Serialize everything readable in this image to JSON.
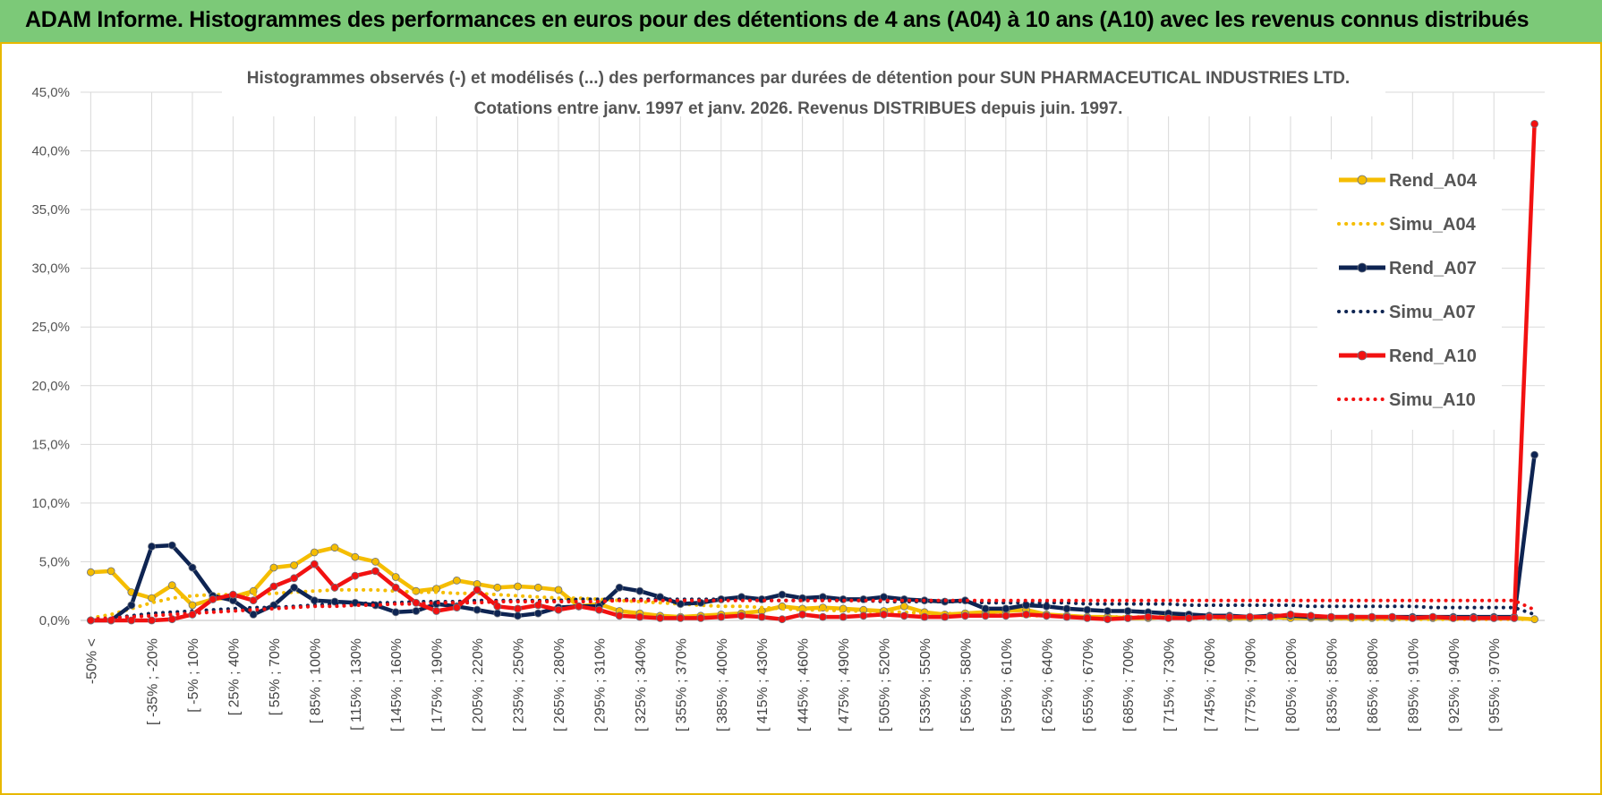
{
  "banner": {
    "title": "ADAM Informe. Histogrammes des performances en euros pour des détentions de 4 ans (A04) à 10 ans (A10) avec les revenus connus distribués"
  },
  "colors": {
    "banner_bg": "#7cc978",
    "frame_border": "#e8b800",
    "A04": "#f5bd00",
    "A07": "#0e2452",
    "A10": "#f21111"
  },
  "chart_data": {
    "type": "line",
    "title": "Histogrammes observés (-) et modélisés (...) des performances par durées de détention pour SUN PHARMACEUTICAL INDUSTRIES LTD.",
    "subtitle": "Cotations entre janv. 1997 et janv. 2026. Revenus DISTRIBUES depuis juin. 1997.",
    "xlabel": "",
    "ylabel": "",
    "ylim": [
      0,
      45
    ],
    "yticks": [
      "0,0%",
      "5,0%",
      "10,0%",
      "15,0%",
      "20,0%",
      "25,0%",
      "30,0%",
      "35,0%",
      "40,0%",
      "45,0%"
    ],
    "grid": true,
    "legend_position": "top-right",
    "categories_labeled": [
      "-50% <",
      "[ -35% ; -20%",
      "[ -5% ; 10%",
      "[ 25% ; 40%",
      "[ 55% ; 70%",
      "[ 85% ; 100%",
      "[ 115% ; 130%",
      "[ 145% ; 160%",
      "[ 175% ; 190%",
      "[ 205% ; 220%",
      "[ 235% ; 250%",
      "[ 265% ; 280%",
      "[ 295% ; 310%",
      "[ 325% ; 340%",
      "[ 355% ; 370%",
      "[ 385% ; 400%",
      "[ 415% ; 430%",
      "[ 445% ; 460%",
      "[ 475% ; 490%",
      "[ 505% ; 520%",
      "[ 535% ; 550%",
      "[ 565% ; 580%",
      "[ 595% ; 610%",
      "[ 625% ; 640%",
      "[ 655% ; 670%",
      "[ 685% ; 700%",
      "[ 715% ; 730%",
      "[ 745% ; 760%",
      "[ 775% ; 790%",
      "[ 805% ; 820%",
      "[ 835% ; 850%",
      "[ 865% ; 880%",
      "[ 895% ; 910%",
      "[ 925% ; 940%",
      "[ 955% ; 970%"
    ],
    "label_indices": [
      0,
      3,
      5,
      7,
      9,
      11,
      13,
      15,
      17,
      19,
      21,
      23,
      25,
      27,
      29,
      31,
      33,
      35,
      37,
      39,
      41,
      43,
      45,
      47,
      49,
      51,
      53,
      55,
      57,
      59,
      61,
      63,
      65,
      67,
      69
    ],
    "n_points": 72,
    "series": [
      {
        "name": "Rend_A04",
        "style": "solid",
        "color": "#f5bd00",
        "values": [
          4.1,
          4.2,
          2.4,
          1.9,
          3.0,
          1.3,
          1.8,
          2.0,
          2.5,
          4.5,
          4.7,
          5.8,
          6.2,
          5.4,
          5.0,
          3.7,
          2.5,
          2.7,
          3.4,
          3.1,
          2.8,
          2.9,
          2.8,
          2.6,
          1.2,
          1.4,
          0.8,
          0.6,
          0.4,
          0.3,
          0.4,
          0.5,
          0.6,
          0.8,
          1.2,
          1.0,
          1.1,
          1.0,
          0.9,
          0.8,
          1.2,
          0.7,
          0.5,
          0.6,
          0.7,
          0.8,
          0.9,
          0.5,
          0.4,
          0.3,
          0.3,
          0.2,
          0.2,
          0.3,
          0.2,
          0.3,
          0.2,
          0.2,
          0.3,
          0.2,
          0.2,
          0.2,
          0.2,
          0.2,
          0.2,
          0.2,
          0.2,
          0.2,
          0.2,
          0.2,
          0.2,
          0.1
        ]
      },
      {
        "name": "Simu_A04",
        "style": "dotted",
        "color": "#f5bd00",
        "values": [
          0.2,
          0.5,
          1.0,
          1.5,
          1.9,
          2.1,
          2.2,
          2.2,
          2.2,
          2.3,
          2.4,
          2.5,
          2.6,
          2.6,
          2.6,
          2.5,
          2.4,
          2.4,
          2.3,
          2.3,
          2.2,
          2.1,
          2.0,
          1.9,
          1.9,
          1.8,
          1.7,
          1.6,
          1.5,
          1.4,
          1.3,
          1.2,
          1.2,
          1.1,
          1.0,
          0.9,
          0.9,
          0.8,
          0.8,
          0.7,
          0.7,
          0.6,
          0.6,
          0.5,
          0.5,
          0.5,
          0.4,
          0.4,
          0.4,
          0.3,
          0.3,
          0.3,
          0.3,
          0.3,
          0.2,
          0.2,
          0.2,
          0.2,
          0.2,
          0.2,
          0.2,
          0.2,
          0.1,
          0.1,
          0.1,
          0.1,
          0.1,
          0.1,
          0.1,
          0.1,
          0.1,
          0.1
        ]
      },
      {
        "name": "Rend_A07",
        "style": "solid",
        "color": "#0e2452",
        "values": [
          0.0,
          0.0,
          1.3,
          6.3,
          6.4,
          4.5,
          2.1,
          1.7,
          0.5,
          1.3,
          2.8,
          1.7,
          1.6,
          1.5,
          1.3,
          0.7,
          0.8,
          1.4,
          1.2,
          0.9,
          0.6,
          0.4,
          0.6,
          1.1,
          1.2,
          1.2,
          2.8,
          2.5,
          2.0,
          1.4,
          1.5,
          1.8,
          2.0,
          1.8,
          2.2,
          1.9,
          2.0,
          1.8,
          1.8,
          2.0,
          1.8,
          1.7,
          1.6,
          1.7,
          1.0,
          1.0,
          1.3,
          1.2,
          1.0,
          0.9,
          0.8,
          0.8,
          0.7,
          0.6,
          0.5,
          0.4,
          0.4,
          0.3,
          0.4,
          0.4,
          0.3,
          0.3,
          0.3,
          0.3,
          0.3,
          0.3,
          0.3,
          0.3,
          0.3,
          0.3,
          0.3,
          14.1
        ]
      },
      {
        "name": "Simu_A07",
        "style": "dotted",
        "color": "#0e2452",
        "values": [
          0.1,
          0.2,
          0.4,
          0.6,
          0.7,
          0.8,
          0.9,
          1.0,
          1.1,
          1.1,
          1.2,
          1.3,
          1.4,
          1.4,
          1.5,
          1.5,
          1.6,
          1.6,
          1.6,
          1.7,
          1.7,
          1.7,
          1.7,
          1.7,
          1.8,
          1.8,
          1.8,
          1.8,
          1.8,
          1.8,
          1.8,
          1.8,
          1.8,
          1.7,
          1.7,
          1.7,
          1.7,
          1.7,
          1.7,
          1.6,
          1.6,
          1.6,
          1.6,
          1.6,
          1.5,
          1.5,
          1.5,
          1.5,
          1.5,
          1.4,
          1.4,
          1.4,
          1.4,
          1.4,
          1.3,
          1.3,
          1.3,
          1.3,
          1.3,
          1.3,
          1.2,
          1.2,
          1.2,
          1.2,
          1.2,
          1.2,
          1.1,
          1.1,
          1.1,
          1.1,
          1.1,
          0.5
        ]
      },
      {
        "name": "Rend_A10",
        "style": "solid",
        "color": "#f21111",
        "values": [
          0.0,
          0.0,
          0.0,
          0.0,
          0.1,
          0.5,
          1.8,
          2.2,
          1.7,
          2.9,
          3.6,
          4.8,
          2.8,
          3.8,
          4.2,
          2.8,
          1.5,
          0.8,
          1.1,
          2.6,
          1.2,
          1.0,
          1.3,
          0.9,
          1.2,
          0.9,
          0.4,
          0.3,
          0.2,
          0.2,
          0.2,
          0.3,
          0.4,
          0.3,
          0.1,
          0.5,
          0.3,
          0.3,
          0.4,
          0.5,
          0.4,
          0.3,
          0.3,
          0.4,
          0.4,
          0.4,
          0.5,
          0.4,
          0.3,
          0.2,
          0.1,
          0.2,
          0.3,
          0.2,
          0.2,
          0.3,
          0.3,
          0.3,
          0.3,
          0.5,
          0.4,
          0.3,
          0.3,
          0.3,
          0.3,
          0.2,
          0.3,
          0.2,
          0.2,
          0.2,
          0.2,
          42.3
        ]
      },
      {
        "name": "Simu_A10",
        "style": "dotted",
        "color": "#f21111",
        "values": [
          0.1,
          0.2,
          0.3,
          0.4,
          0.5,
          0.6,
          0.7,
          0.8,
          0.9,
          1.0,
          1.1,
          1.2,
          1.2,
          1.3,
          1.3,
          1.4,
          1.4,
          1.5,
          1.5,
          1.5,
          1.6,
          1.6,
          1.6,
          1.6,
          1.6,
          1.6,
          1.7,
          1.7,
          1.7,
          1.7,
          1.7,
          1.7,
          1.7,
          1.7,
          1.7,
          1.7,
          1.7,
          1.7,
          1.7,
          1.7,
          1.7,
          1.7,
          1.7,
          1.7,
          1.7,
          1.7,
          1.7,
          1.7,
          1.7,
          1.7,
          1.7,
          1.7,
          1.7,
          1.7,
          1.7,
          1.7,
          1.7,
          1.7,
          1.7,
          1.7,
          1.7,
          1.7,
          1.7,
          1.7,
          1.7,
          1.7,
          1.7,
          1.7,
          1.7,
          1.7,
          1.7,
          0.9
        ]
      }
    ]
  }
}
